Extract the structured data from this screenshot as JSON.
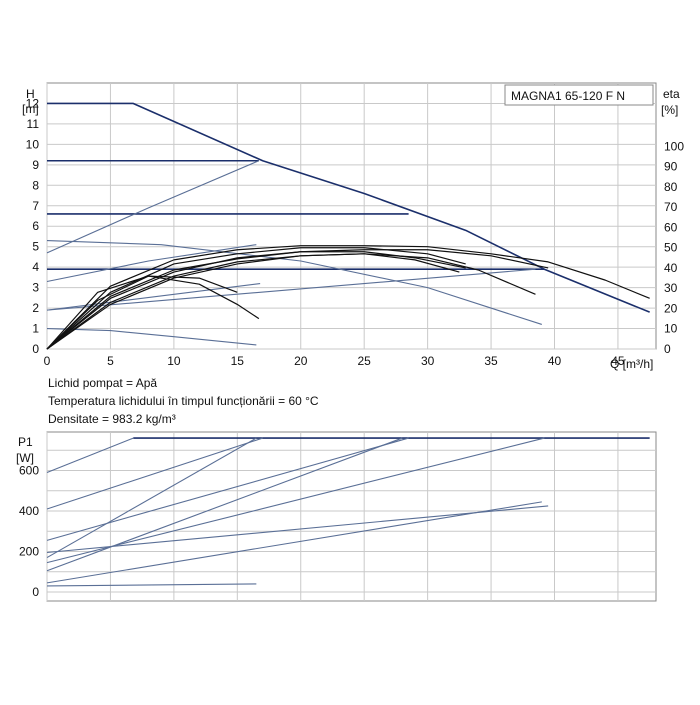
{
  "chart_data": [
    {
      "type": "line",
      "title": "MAGNA1 65-120 F N",
      "ylabel": "H",
      "ylabel_unit": "[m]",
      "y2label": "eta",
      "y2label_unit": "[%]",
      "xlabel": "Q [m³/h]",
      "xlim": [
        0,
        48
      ],
      "ylim": [
        0,
        13
      ],
      "y2lim": [
        0,
        100
      ],
      "xticks": [
        "0",
        "5",
        "10",
        "15",
        "20",
        "25",
        "30",
        "35",
        "40",
        "45"
      ],
      "yticks": [
        "0",
        "1",
        "2",
        "3",
        "4",
        "5",
        "6",
        "7",
        "8",
        "9",
        "10",
        "11",
        "12"
      ],
      "y2ticks": [
        "0",
        "10",
        "20",
        "30",
        "40",
        "50",
        "60",
        "70",
        "80",
        "90",
        "100"
      ],
      "grid": true,
      "series": [
        {
          "kind": "head-max",
          "x": [
            0,
            6.8,
            17,
            25,
            33,
            39.2,
            47.5
          ],
          "y": [
            12,
            12,
            9.2,
            7.6,
            5.8,
            3.9,
            1.8
          ]
        },
        {
          "kind": "head-cc",
          "x": [
            0,
            16.7
          ],
          "y": [
            9.2,
            9.2
          ]
        },
        {
          "kind": "head-cc",
          "x": [
            0,
            28.5
          ],
          "y": [
            6.6,
            6.6
          ]
        },
        {
          "kind": "head-cc",
          "x": [
            0,
            39.2
          ],
          "y": [
            3.9,
            3.9
          ]
        },
        {
          "kind": "head-pp",
          "x": [
            0,
            9,
            20,
            30,
            39
          ],
          "y": [
            5.3,
            5.1,
            4.3,
            3.0,
            1.2
          ]
        },
        {
          "kind": "head-pp",
          "x": [
            0,
            16.8
          ],
          "y": [
            1.9,
            3.2
          ]
        },
        {
          "kind": "head-pp",
          "x": [
            0,
            38.5
          ],
          "y": [
            1.9,
            3.9
          ]
        },
        {
          "kind": "head-pp",
          "x": [
            0,
            5,
            10,
            16.5
          ],
          "y": [
            1.0,
            0.9,
            0.6,
            0.2
          ]
        },
        {
          "kind": "head-ap",
          "x": [
            0,
            8,
            16.7
          ],
          "y": [
            4.7,
            6.9,
            9.2
          ]
        },
        {
          "kind": "head-ap",
          "x": [
            0,
            8,
            16.5
          ],
          "y": [
            3.3,
            4.3,
            5.1
          ]
        },
        {
          "kind": "eta",
          "x": [
            0,
            5,
            10,
            15,
            20,
            25,
            30,
            35,
            39.5,
            44,
            47.5
          ],
          "y": [
            0,
            31,
            44,
            49,
            51,
            51,
            50.5,
            47,
            43,
            34,
            25
          ]
        },
        {
          "kind": "eta",
          "x": [
            0,
            5,
            10,
            15,
            20,
            25,
            30,
            35,
            39.5
          ],
          "y": [
            0,
            26,
            39,
            44.5,
            48,
            49,
            49,
            46,
            40
          ]
        },
        {
          "kind": "eta",
          "x": [
            0,
            5,
            10,
            15,
            20,
            25,
            30,
            34,
            38.5
          ],
          "y": [
            0,
            23,
            36,
            43,
            46,
            47,
            45,
            39,
            27
          ]
        },
        {
          "kind": "eta",
          "x": [
            0,
            4,
            8,
            12,
            15,
            16.7
          ],
          "y": [
            0,
            28,
            36,
            32,
            22,
            15
          ]
        },
        {
          "kind": "eta",
          "x": [
            0,
            5,
            10,
            15,
            20,
            25,
            30,
            33
          ],
          "y": [
            0,
            28,
            42,
            47,
            50,
            50,
            47,
            42
          ]
        },
        {
          "kind": "eta",
          "x": [
            0,
            5,
            10,
            15,
            20,
            25,
            29,
            33
          ],
          "y": [
            0,
            25,
            38,
            45,
            48,
            48,
            45,
            40
          ]
        },
        {
          "kind": "eta",
          "x": [
            0,
            5,
            10,
            15,
            20,
            25,
            29,
            32.5
          ],
          "y": [
            0,
            22,
            35,
            42,
            46,
            47,
            44,
            38
          ]
        },
        {
          "kind": "eta",
          "x": [
            0,
            4,
            8,
            12,
            15
          ],
          "y": [
            0,
            24,
            36,
            35,
            28
          ]
        }
      ]
    },
    {
      "type": "line",
      "ylabel": "P1",
      "ylabel_unit": "[W]",
      "xlim": [
        0,
        48
      ],
      "ylim": [
        0,
        790
      ],
      "yticks": [
        "0",
        "200",
        "400",
        "600"
      ],
      "grid": true,
      "series": [
        {
          "x": [
            6.8,
            47.5
          ],
          "y": [
            760,
            760
          ]
        },
        {
          "x": [
            0,
            6.8
          ],
          "y": [
            590,
            760
          ]
        },
        {
          "x": [
            0,
            17
          ],
          "y": [
            410,
            760
          ]
        },
        {
          "x": [
            0,
            28.5
          ],
          "y": [
            255,
            760
          ]
        },
        {
          "x": [
            0,
            39.2
          ],
          "y": [
            145,
            760
          ]
        },
        {
          "x": [
            0,
            16.5
          ],
          "y": [
            170,
            760
          ]
        },
        {
          "x": [
            0,
            28
          ],
          "y": [
            105,
            760
          ]
        },
        {
          "x": [
            0,
            39
          ],
          "y": [
            45,
            445
          ]
        },
        {
          "x": [
            0,
            39.5
          ],
          "y": [
            195,
            425
          ]
        },
        {
          "x": [
            0,
            16.5
          ],
          "y": [
            30,
            40
          ]
        }
      ]
    }
  ],
  "info": {
    "line1": "Lichid pompat = Apă",
    "line2": "Temperatura lichidului în timpul funcționării = 60 °C",
    "line3": "Densitate = 983.2 kg/m³"
  },
  "colors": {
    "navy": "#1b2f6b",
    "line": "#5a6f96",
    "eta": "#111111",
    "grid": "#c9c9c9",
    "frame": "#888888"
  }
}
